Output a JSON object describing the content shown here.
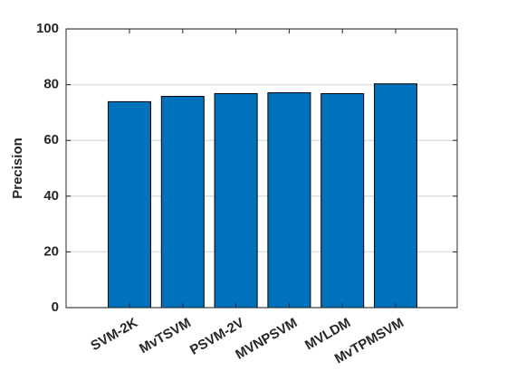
{
  "chart_data": {
    "type": "bar",
    "y_label": "Precision",
    "categories": [
      "SVM-2K",
      "MvTSVM",
      "PSVM-2V",
      "MVNPSVM",
      "MVLDM",
      "MvTPMSVM"
    ],
    "values": [
      73.9,
      75.8,
      76.8,
      77.1,
      76.8,
      80.3
    ],
    "color": "#0072bd",
    "ylim": [
      0,
      100
    ],
    "yticks": [
      0,
      20,
      40,
      60,
      80,
      100
    ],
    "grid": true
  }
}
